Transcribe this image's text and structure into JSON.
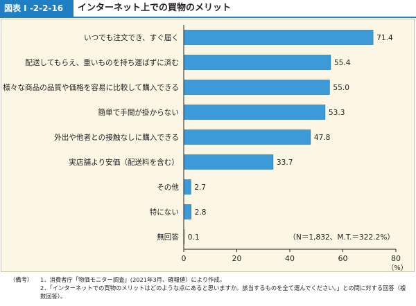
{
  "header": {
    "figure_label": "図表 I -2-2-16",
    "title": "インターネット上での買物のメリット"
  },
  "chart_data": {
    "type": "bar",
    "orientation": "horizontal",
    "title": "インターネット上での買物のメリット",
    "categories": [
      "いつでも注文でき、すぐ届く",
      "配送してもらえ、重いものを持ち運ばずに済む",
      "様々な商品の品質や価格を容易に比較して購入できる",
      "簡単で手間が掛からない",
      "外出や他者との接触なしに購入できる",
      "実店舗より安価（配送料を含む）",
      "その他",
      "特にない",
      "無回答"
    ],
    "values": [
      71.4,
      55.4,
      55.0,
      53.3,
      47.8,
      33.7,
      2.7,
      2.8,
      0.1
    ],
    "value_labels": [
      "71.4",
      "55.4",
      "55.0",
      "53.3",
      "47.8",
      "33.7",
      "2.7",
      "2.8",
      "0.1"
    ],
    "xlim": [
      0,
      80
    ],
    "x_ticks": [
      "0",
      "20",
      "40",
      "60",
      "80"
    ],
    "unit_label": "（%）",
    "annotation": "（N＝1,832、M.T.＝322.2%）",
    "grid": false,
    "legend": "none",
    "bar_color": "#3d9ad9",
    "bar_border_color": "#1f6fae"
  },
  "notes": {
    "key": "（備考）",
    "items": [
      "1．消費者庁「物価モニター調査」(2021年3月、確報値）により作成。",
      "2．「インターネットでの買物のメリットはどのような点にあると思いますか。該当するものを全て選んでください。」との問に対する回答（複数回答）。"
    ]
  }
}
